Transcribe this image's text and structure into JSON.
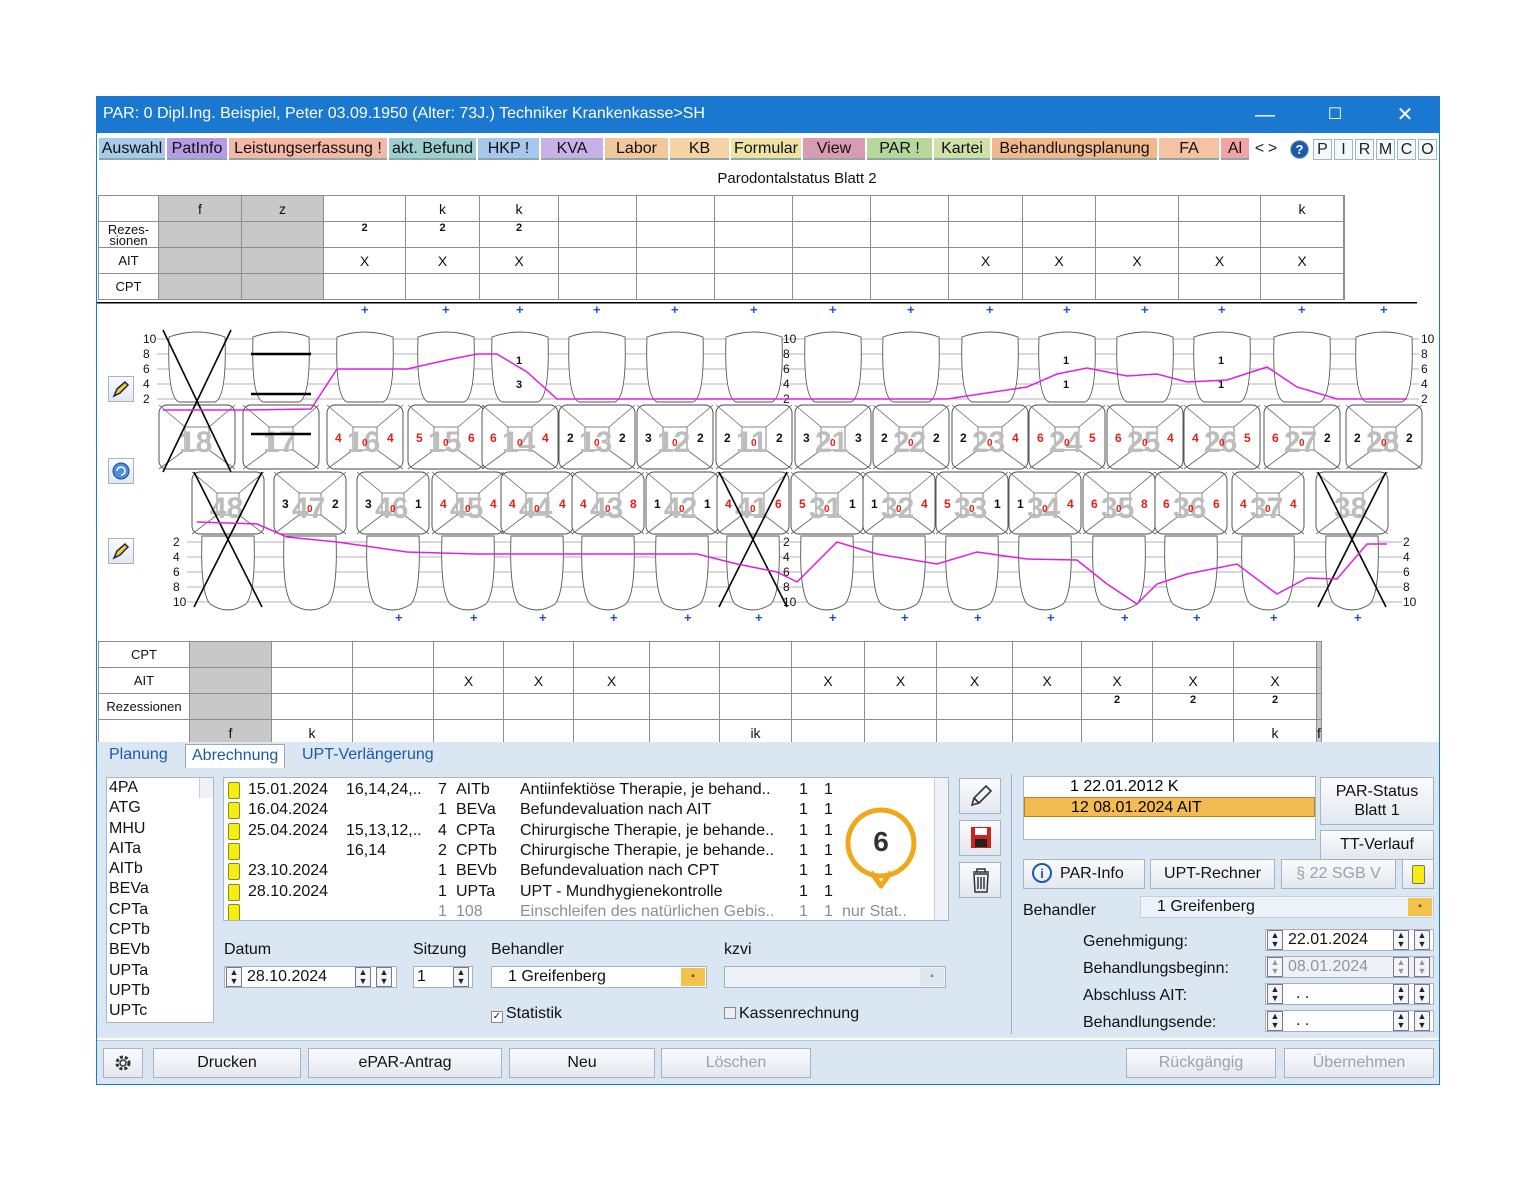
{
  "window": {
    "title": "PAR: 0  Dipl.Ing. Beispiel, Peter  03.09.1950 (Alter: 73J.)  Techniker Krankenkasse>SH",
    "minimize_glyph": "—",
    "maximize_glyph": "☐",
    "close_glyph": "✕"
  },
  "menu": {
    "tabs": [
      {
        "label": "Auswahl",
        "color": "#a7cbe8"
      },
      {
        "label": "PatInfo",
        "color": "#b59ce3"
      },
      {
        "label": "Leistungserfassung !",
        "color": "#f4b9a6"
      },
      {
        "label": "akt. Befund",
        "color": "#9ecfd0"
      },
      {
        "label": "HKP !",
        "color": "#a9c7ec"
      },
      {
        "label": "KVA",
        "color": "#c7b1e6"
      },
      {
        "label": "Labor",
        "color": "#f2c79a"
      },
      {
        "label": "KB",
        "color": "#f6d3a4"
      },
      {
        "label": "Formular",
        "color": "#eee3a2"
      },
      {
        "label": "View",
        "color": "#d99bb2"
      },
      {
        "label": "PAR !",
        "color": "#b8d79b"
      },
      {
        "label": "Kartei",
        "color": "#cfe1a6"
      },
      {
        "label": "Behandlungsplanung",
        "color": "#f1b88c"
      },
      {
        "label": "FA",
        "color": "#f6c3a2"
      },
      {
        "label": "Al",
        "color": "#f2a3a3"
      }
    ],
    "scroll_left": "˂",
    "scroll_right": "˃",
    "help_icon": "?",
    "letters": [
      "P",
      "I",
      "R",
      "M",
      "C",
      "O"
    ]
  },
  "chart": {
    "title": "Parodontalstatus Blatt 2",
    "upper": {
      "labels": {
        "top": "",
        "rez": "Rezes-\nsionen",
        "ait": "AIT",
        "cpt": "CPT"
      },
      "marks": [
        "f",
        "z",
        "",
        "k",
        "k",
        "",
        "",
        "",
        "",
        "",
        "",
        "",
        "",
        "",
        "k",
        ""
      ],
      "rez": [
        "",
        "",
        "2",
        "2",
        "2",
        "",
        "",
        "",
        "",
        "",
        "",
        "",
        "",
        "",
        "",
        ""
      ],
      "ait": [
        "",
        "",
        "X",
        "X",
        "X",
        "",
        "",
        "",
        "",
        "",
        "X",
        "X",
        "X",
        "X",
        "X",
        ""
      ],
      "cpt": [
        "",
        "",
        "",
        "",
        "",
        "",
        "",
        "",
        "",
        "",
        "",
        "",
        "",
        "",
        "",
        ""
      ],
      "grey_cols": [
        0,
        1
      ]
    },
    "lower": {
      "labels": {
        "cpt": "CPT",
        "ait": "AIT",
        "rez": "Rezessionen",
        "bottom": ""
      },
      "marks": [
        "f",
        "k",
        "",
        "",
        "",
        "",
        "",
        "ik",
        "",
        "",
        "",
        "",
        "",
        "",
        "k",
        "f"
      ],
      "rez": [
        "",
        "",
        "",
        "",
        "",
        "",
        "",
        "",
        "",
        "",
        "",
        "",
        "2",
        "2",
        "2",
        ""
      ],
      "ait": [
        "",
        "",
        "",
        "X",
        "X",
        "X",
        "",
        "",
        "X",
        "X",
        "X",
        "X",
        "X",
        "X",
        "X",
        ""
      ],
      "cpt": [
        "",
        "",
        "",
        "",
        "",
        "",
        "",
        "",
        "",
        "",
        "",
        "",
        "",
        "",
        "",
        ""
      ],
      "grey_cols": [
        0,
        15
      ]
    },
    "scale_upper": [
      "10",
      "8",
      "6",
      "4",
      "2"
    ],
    "scale_lower": [
      "2",
      "4",
      "6",
      "8",
      "10"
    ],
    "upper_teeth": [
      {
        "num": "18",
        "vals": [
          "",
          "",
          ""
        ],
        "missing": true
      },
      {
        "num": "17",
        "vals": [
          "",
          "",
          ""
        ],
        "missing": false
      },
      {
        "num": "16",
        "vals": [
          "4",
          "0",
          "4"
        ]
      },
      {
        "num": "15",
        "vals": [
          "5",
          "0",
          "6"
        ]
      },
      {
        "num": "14",
        "vals": [
          "6",
          "0",
          "4"
        ]
      },
      {
        "num": "13",
        "vals": [
          "2",
          "0",
          "2"
        ]
      },
      {
        "num": "12",
        "vals": [
          "3",
          "0",
          "2"
        ]
      },
      {
        "num": "11",
        "vals": [
          "2",
          "0",
          "2"
        ]
      },
      {
        "num": "21",
        "vals": [
          "3",
          "0",
          "3"
        ]
      },
      {
        "num": "22",
        "vals": [
          "2",
          "0",
          "2"
        ]
      },
      {
        "num": "23",
        "vals": [
          "2",
          "0",
          "4"
        ]
      },
      {
        "num": "24",
        "vals": [
          "6",
          "0",
          "5"
        ]
      },
      {
        "num": "25",
        "vals": [
          "6",
          "0",
          "4"
        ]
      },
      {
        "num": "26",
        "vals": [
          "4",
          "0",
          "5"
        ]
      },
      {
        "num": "27",
        "vals": [
          "6",
          "0",
          "2"
        ]
      },
      {
        "num": "28",
        "vals": [
          "2",
          "0",
          "2"
        ]
      }
    ],
    "lower_teeth": [
      {
        "num": "48",
        "vals": [
          "",
          "",
          ""
        ],
        "missing": true
      },
      {
        "num": "47",
        "vals": [
          "3",
          "0",
          "2"
        ]
      },
      {
        "num": "46",
        "vals": [
          "3",
          "0",
          "1"
        ]
      },
      {
        "num": "45",
        "vals": [
          "4",
          "0",
          "4"
        ]
      },
      {
        "num": "44",
        "vals": [
          "4",
          "0",
          "4"
        ]
      },
      {
        "num": "43",
        "vals": [
          "4",
          "0",
          "8"
        ]
      },
      {
        "num": "42",
        "vals": [
          "1",
          "0",
          "1"
        ]
      },
      {
        "num": "41",
        "vals": [
          "4",
          "0",
          "6"
        ],
        "missing": true
      },
      {
        "num": "31",
        "vals": [
          "5",
          "0",
          "1"
        ]
      },
      {
        "num": "32",
        "vals": [
          "1",
          "0",
          "4"
        ]
      },
      {
        "num": "33",
        "vals": [
          "5",
          "0",
          "1"
        ]
      },
      {
        "num": "34",
        "vals": [
          "1",
          "0",
          "4"
        ]
      },
      {
        "num": "35",
        "vals": [
          "6",
          "0",
          "8"
        ]
      },
      {
        "num": "36",
        "vals": [
          "6",
          "0",
          "6"
        ]
      },
      {
        "num": "37",
        "vals": [
          "4",
          "0",
          "4"
        ]
      },
      {
        "num": "38",
        "vals": [
          "",
          "",
          ""
        ],
        "missing": true
      }
    ],
    "upper_furcation": {
      "14": [
        "1",
        "3"
      ],
      "24": [
        "1",
        "1"
      ],
      "26": [
        "1",
        "1"
      ]
    },
    "plus_glyph": "+",
    "colors": {
      "probing_line": "#e020e0",
      "pocket_values": "#e0201a",
      "tooth_numbers": "#bdbdbd"
    }
  },
  "panel": {
    "tabs": [
      "Planung",
      "Abrechnung",
      "UPT-Verlängerung"
    ],
    "active_tab": "Abrechnung",
    "codes": [
      "4PA",
      "ATG",
      "MHU",
      "AITa",
      "AITb",
      "BEVa",
      "CPTa",
      "CPTb",
      "BEVb",
      "UPTa",
      "UPTb",
      "UPTc"
    ],
    "services": [
      {
        "date": "15.01.2024",
        "teeth": "16,14,24,..",
        "count": "7",
        "code": "AITb",
        "desc": "Antiinfektiöse Therapie, je behand..",
        "a": "1",
        "b": "1",
        "extra": "",
        "grey": false
      },
      {
        "date": "16.04.2024",
        "teeth": "",
        "count": "1",
        "code": "BEVa",
        "desc": "Befundevaluation nach AIT",
        "a": "1",
        "b": "1",
        "extra": "",
        "grey": false
      },
      {
        "date": "25.04.2024",
        "teeth": "15,13,12,..",
        "count": "4",
        "code": "CPTa",
        "desc": "Chirurgische Therapie, je behande..",
        "a": "1",
        "b": "1",
        "extra": "",
        "grey": false
      },
      {
        "date": "",
        "teeth": "16,14",
        "count": "2",
        "code": "CPTb",
        "desc": "Chirurgische Therapie, je behande..",
        "a": "1",
        "b": "1",
        "extra": "",
        "grey": false
      },
      {
        "date": "23.10.2024",
        "teeth": "",
        "count": "1",
        "code": "BEVb",
        "desc": "Befundevaluation nach CPT",
        "a": "1",
        "b": "1",
        "extra": "",
        "grey": false
      },
      {
        "date": "28.10.2024",
        "teeth": "",
        "count": "1",
        "code": "UPTa",
        "desc": "UPT - Mundhygienekontrolle",
        "a": "1",
        "b": "1",
        "extra": "",
        "grey": false
      },
      {
        "date": "",
        "teeth": "",
        "count": "1",
        "code": "108",
        "desc": "Einschleifen des natürlichen Gebis..",
        "a": "1",
        "b": "1",
        "extra": "nur Stat..",
        "grey": true
      }
    ],
    "callout_number": "6",
    "callout_color": "#f0a81b",
    "datum_label": "Datum",
    "datum_value": "28.10.2024",
    "sitzung_label": "Sitzung",
    "sitzung_value": "1",
    "behandler_label": "Behandler",
    "behandler_value": "1 Greifenberg",
    "kzvi_label": "kzvi",
    "kzvi_value": "",
    "statistik_label": "Statistik",
    "statistik_checked": "✓",
    "kassenrechnung_label": "Kassenrechnung",
    "status_rows": [
      {
        "text": "1  22.01.2012  K",
        "selected": false
      },
      {
        "text": "12  08.01.2024  AIT",
        "selected": true
      }
    ],
    "par_status_btn": "PAR-Status\nBlatt 1",
    "tt_verlauf_btn": "TT-Verlauf",
    "par_info_btn": "PAR-Info",
    "upt_rechner_btn": "UPT-Rechner",
    "sgb_btn": "§ 22 SGB V",
    "right_behandler_label": "Behandler",
    "right_behandler_value": "1 Greifenberg",
    "genehmigung_label": "Genehmigung:",
    "genehmigung_value": "22.01.2024",
    "beginn_label": "Behandlungsbeginn:",
    "beginn_value": "08.01.2024",
    "abschluss_label": "Abschluss AIT:",
    "abschluss_value": " .  .",
    "ende_label": "Behandlungsende:",
    "ende_value": " .  ."
  },
  "footer": {
    "drucken": "Drucken",
    "epar": "ePAR-Antrag",
    "neu": "Neu",
    "loeschen": "Löschen",
    "rueckgaengig": "Rückgängig",
    "uebernehmen": "Übernehmen"
  }
}
